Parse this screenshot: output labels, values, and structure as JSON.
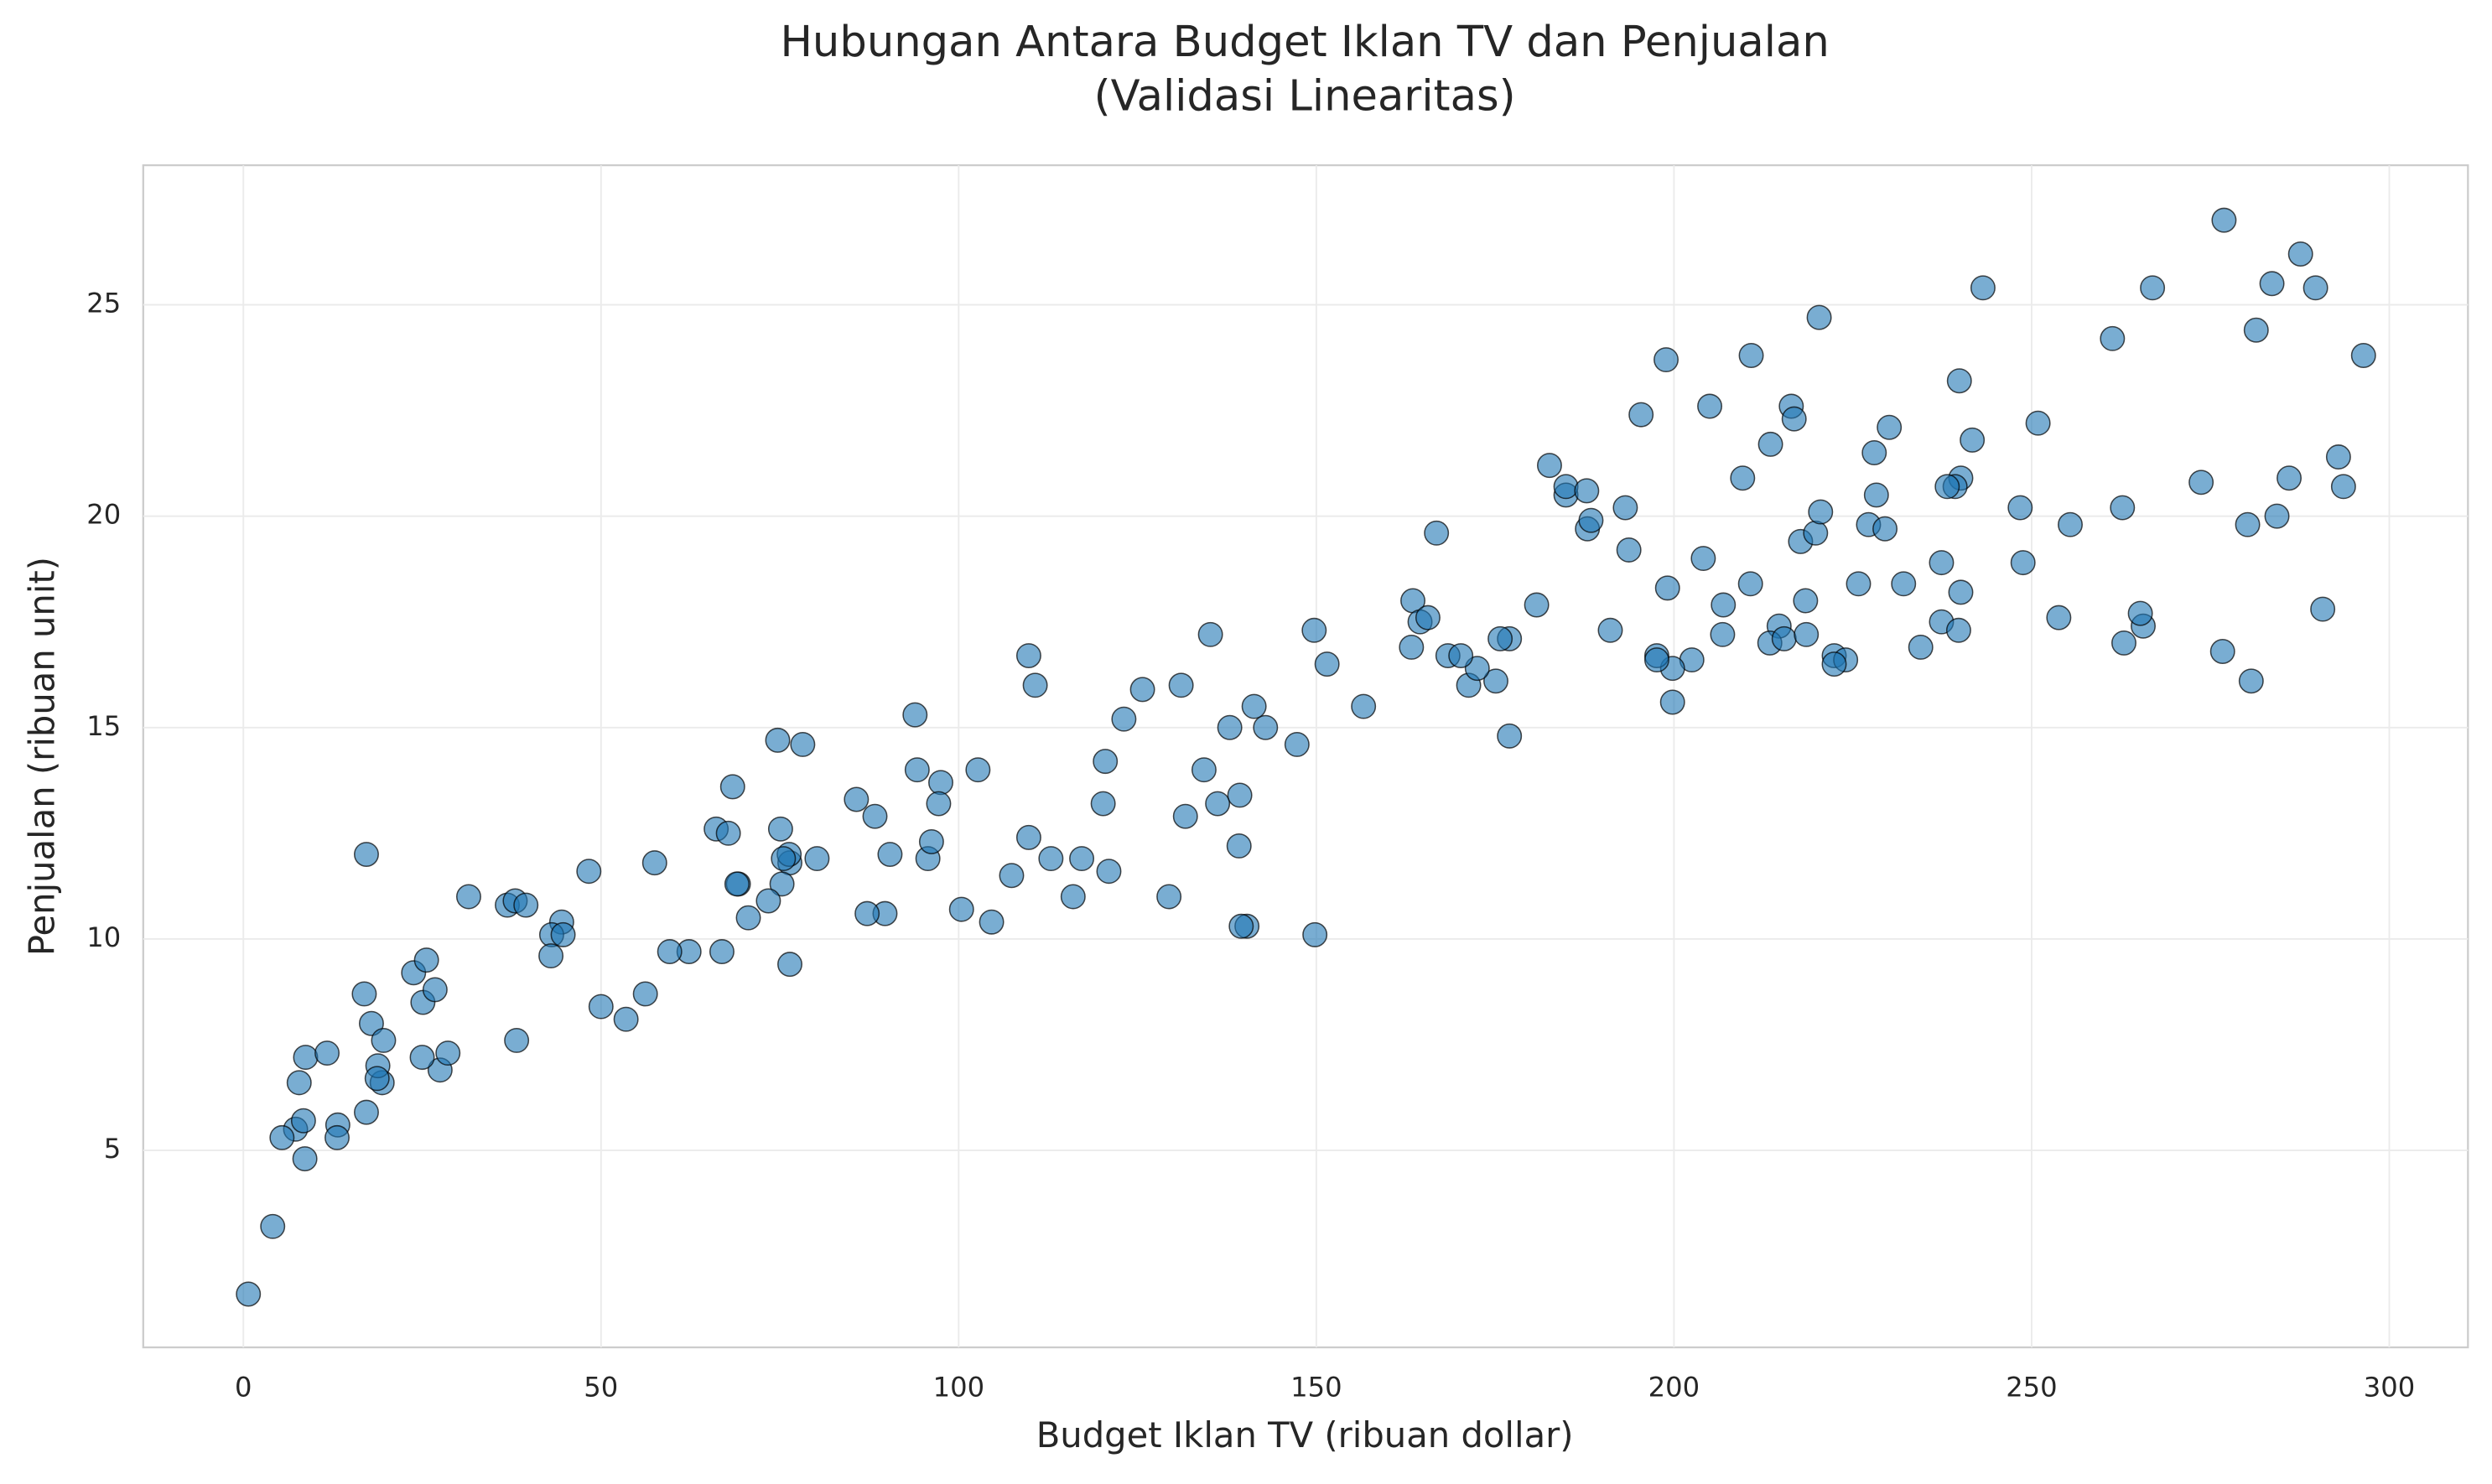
{
  "chart_data": {
    "type": "scatter",
    "title": "Hubungan Antara Budget Iklan TV dan Penjualan\n(Validasi Linearitas)",
    "xlabel": "Budget Iklan TV (ribuan dollar)",
    "ylabel": "Penjualan (ribuan unit)",
    "xlim": [
      -14,
      311
    ],
    "ylim": [
      0.34,
      28.3
    ],
    "xticks": [
      0,
      50,
      100,
      150,
      200,
      250,
      300
    ],
    "yticks": [
      5,
      10,
      15,
      20,
      25
    ],
    "grid": true,
    "color": "#1f77b4",
    "edgecolor": "#000000",
    "x": [
      230.1,
      44.5,
      17.2,
      151.5,
      180.8,
      8.7,
      57.5,
      120.2,
      8.6,
      199.8,
      66.1,
      214.7,
      23.8,
      97.5,
      204.1,
      195.4,
      67.8,
      281.4,
      69.2,
      147.3,
      218.4,
      237.4,
      13.2,
      228.3,
      62.3,
      262.9,
      142.9,
      240.1,
      248.8,
      70.6,
      292.9,
      112.9,
      97.2,
      265.6,
      95.7,
      290.7,
      266.9,
      74.7,
      43.1,
      228,
      202.5,
      177,
      293.6,
      206.9,
      25.1,
      175.1,
      89.7,
      239.9,
      227.2,
      66.9,
      199.8,
      100.4,
      216.4,
      182.6,
      262.7,
      198.9,
      7.3,
      136.2,
      210.8,
      210.7,
      53.5,
      261.3,
      239.3,
      102.7,
      131.1,
      69,
      31.5,
      139.3,
      237.4,
      216.8,
      199.1,
      109.8,
      26.8,
      129.4,
      213.4,
      16.9,
      27.5,
      120.5,
      5.4,
      116,
      76.4,
      239.8,
      75.3,
      68.4,
      213.5,
      193.2,
      76.3,
      110.7,
      88.3,
      109.8,
      134.3,
      28.6,
      217.7,
      250.9,
      107.4,
      163.3,
      197.6,
      184.9,
      289.7,
      135.2,
      222.4,
      296.4,
      280.2,
      187.9,
      238.2,
      137.9,
      25,
      90.4,
      13.1,
      255.4,
      225.8,
      241.7,
      175.7,
      209.6,
      78.2,
      75.1,
      139.2,
      76.4,
      125.7,
      19.4,
      141.3,
      18.8,
      224,
      123.1,
      229.5,
      87.2,
      7.8,
      80.2,
      220.3,
      59.6,
      0.7,
      265.2,
      8.4,
      219.8,
      36.9,
      48.3,
      25.6,
      273.7,
      43,
      184.9,
      73.4,
      193.7,
      220.5,
      104.6,
      96.2,
      140.3,
      240.1,
      243.2,
      38,
      44.7,
      280.7,
      121,
      197.6,
      171.3,
      187.8,
      4.1,
      93.9,
      149.8,
      11.7,
      131.7,
      172.5,
      85.7,
      188.4,
      163.5,
      117.2,
      234.5,
      17.9,
      206.8,
      215.4,
      284.3,
      50,
      164.5,
      19.6,
      168.4,
      222.4,
      276.9,
      248.4,
      170.2,
      276.7,
      165.6,
      156.6,
      218.5,
      56.2,
      287.6,
      253.8,
      205,
      139.5,
      191.1,
      286,
      18.7,
      39.5,
      75.5,
      17.2,
      166.8,
      149.7,
      38.2,
      94.2,
      177,
      283.6,
      232.1
    ],
    "values": [
      22.1,
      10.4,
      12,
      16.5,
      17.9,
      7.2,
      11.8,
      13.2,
      4.8,
      15.6,
      12.6,
      17.4,
      9.2,
      13.7,
      19,
      22.4,
      12.5,
      24.4,
      11.3,
      14.6,
      18,
      17.5,
      5.6,
      20.5,
      9.7,
      17,
      15,
      20.9,
      18.9,
      10.5,
      21.4,
      11.9,
      13.2,
      17.4,
      11.9,
      17.8,
      25.4,
      14.7,
      10.1,
      21.5,
      16.6,
      17.1,
      20.7,
      17.9,
      8.5,
      16.1,
      10.6,
      23.2,
      19.8,
      9.7,
      16.4,
      10.7,
      22.6,
      21.2,
      20.2,
      23.7,
      5.5,
      13.2,
      23.8,
      18.4,
      8.1,
      24.2,
      20.7,
      14,
      16,
      11.3,
      11,
      13.4,
      18.9,
      22.3,
      18.3,
      12.4,
      8.8,
      11,
      17,
      8.7,
      6.9,
      14.2,
      5.3,
      11,
      11.8,
      17.3,
      11.3,
      13.6,
      21.7,
      20.2,
      12,
      16,
      12.9,
      16.7,
      14,
      7.3,
      19.4,
      22.2,
      11.5,
      16.9,
      16.7,
      20.5,
      25.4,
      17.2,
      16.7,
      23.8,
      19.8,
      19.7,
      20.7,
      15,
      7.2,
      12,
      5.3,
      19.8,
      18.4,
      21.8,
      17.1,
      20.9,
      14.6,
      12.6,
      12.2,
      9.4,
      15.9,
      6.6,
      15.5,
      7,
      16.6,
      15.2,
      19.7,
      10.6,
      6.6,
      11.9,
      24.7,
      9.7,
      1.6,
      17.7,
      5.7,
      19.6,
      10.8,
      11.6,
      9.5,
      20.8,
      9.6,
      20.7,
      10.9,
      19.2,
      20.1,
      10.4,
      12.3,
      10.3,
      18.2,
      25.4,
      10.9,
      10.1,
      16.1,
      11.6,
      16.6,
      16,
      20.6,
      3.2,
      15.3,
      10.1,
      7.3,
      12.9,
      16.4,
      13.3,
      19.9,
      18,
      11.9,
      16.9,
      8,
      17.2,
      17.1,
      20,
      8.4,
      17.5,
      7.6,
      16.7,
      16.5,
      27,
      20.2,
      16.7,
      16.8,
      17.6,
      15.5,
      17.2,
      8.7,
      26.2,
      17.6,
      22.6,
      10.3,
      17.3,
      20.9,
      6.7,
      10.8,
      11.9,
      5.9,
      19.6,
      17.3,
      7.6,
      14,
      14.8,
      25.5,
      18.4
    ]
  }
}
